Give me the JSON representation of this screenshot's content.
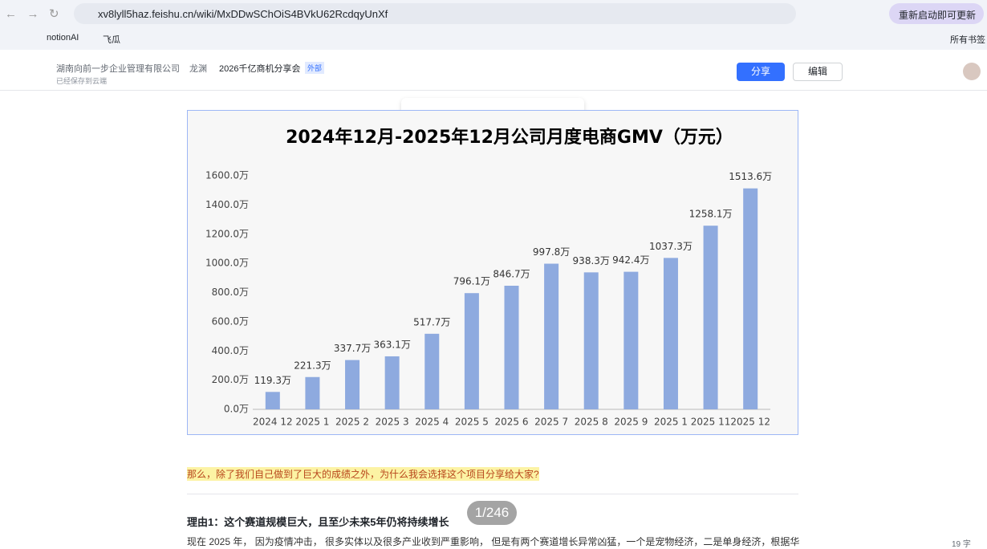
{
  "browser": {
    "url": "xv8lyll5haz.feishu.cn/wiki/MxDDwSChOiS4BVkU62RcdqyUnXf",
    "update": "重新启动即可更新",
    "bookmarks": [
      "notionAI",
      "飞瓜"
    ],
    "all_bookmarks": "所有书签"
  },
  "header": {
    "breadcrumb": [
      "湖南向前一步企业管理有限公司",
      "龙渊",
      "2026千亿商机分享会"
    ],
    "badge": "外部",
    "saved": "已经保存到云端",
    "share": "分享",
    "edit": "编辑"
  },
  "chart_data": {
    "type": "bar",
    "title": "2024年12月-2025年12月公司月度电商GMV（万元）",
    "categories": [
      "2024 12",
      "2025 1",
      "2025 2",
      "2025 3",
      "2025 4",
      "2025 5",
      "2025 6",
      "2025 7",
      "2025 8",
      "2025 9",
      "2025 1",
      "2025 11",
      "2025 12"
    ],
    "values": [
      119.3,
      221.3,
      337.7,
      363.1,
      517.7,
      796.1,
      846.7,
      997.8,
      938.3,
      942.4,
      1037.3,
      1258.1,
      1513.6
    ],
    "value_labels": [
      "119.3万",
      "221.3万",
      "337.7万",
      "363.1万",
      "517.7万",
      "796.1万",
      "846.7万",
      "997.8万",
      "938.3万",
      "942.4万",
      "1037.3万",
      "1258.1万",
      "1513.6万"
    ],
    "color": "#8eaadf",
    "ylim": [
      0,
      1600
    ],
    "yticks": [
      {
        "value": 0,
        "label": "0.0万"
      },
      {
        "value": 200,
        "label": "200.0万"
      },
      {
        "value": 400,
        "label": "400.0万"
      },
      {
        "value": 600,
        "label": "600.0万"
      },
      {
        "value": 800,
        "label": "800.0万"
      },
      {
        "value": 1000,
        "label": "1000.0万"
      },
      {
        "value": 1200,
        "label": "1200.0万"
      },
      {
        "value": 1400,
        "label": "1400.0万"
      },
      {
        "value": 1600,
        "label": "1600.0万"
      }
    ],
    "grid": false
  },
  "document": {
    "highlight": "那么，除了我们自己做到了巨大的成绩之外，为什么我会选择这个项目分享给大家?",
    "heading": "理由1：这个赛道规模巨大，且至少未来5年仍将持续增长",
    "paragraph": "现在 2025 年， 因为疫情冲击， 很多实体以及很多产业收到严重影响， 但是有两个赛道增长异常凶猛，一个是宠物经济，二是单身经济，根据华",
    "page_indicator": "1/246",
    "word_count": "19 字"
  }
}
